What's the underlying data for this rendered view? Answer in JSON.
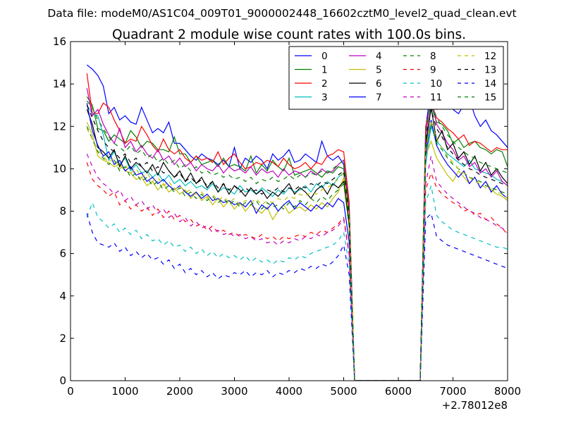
{
  "chart_data": {
    "type": "line",
    "suptitle": "Data file: modeM0/AS1C04_009T01_9000002448_16602cztM0_level2_quad_clean.evt",
    "title": "Quadrant 2 module wise count rates with 100.0s bins.",
    "xlabel": "",
    "ylabel": "",
    "x_offset_label": "+2.78012e8",
    "xlim": [
      0,
      8000
    ],
    "ylim": [
      0,
      16
    ],
    "xticks": [
      0,
      1000,
      2000,
      3000,
      4000,
      5000,
      6000,
      7000,
      8000
    ],
    "yticks": [
      0,
      2,
      4,
      6,
      8,
      10,
      12,
      14,
      16
    ],
    "x_start": 300,
    "x_step": 100,
    "gap": {
      "drop_from": 5100,
      "zero_from": 5200,
      "zero_to": 6400,
      "rise_to": 6500
    },
    "legend_position": "top-right",
    "series": [
      {
        "name": "0",
        "color": "#0000ff",
        "dash": "solid",
        "seg1": [
          14.9,
          14.7,
          14.4,
          13.9,
          12.6,
          12.9,
          12.3,
          12.5,
          12.2,
          12.1,
          12.9,
          12.3,
          11.7,
          11.9,
          11.7,
          12.2,
          11.2,
          11.2,
          10.9,
          10.6,
          10.4,
          10.7,
          10.5,
          10.4,
          10.2,
          10.4,
          10.1,
          11.0,
          10.0,
          10.5,
          10.3,
          10.6,
          10.4,
          10.0,
          10.7,
          10.4,
          10.6,
          10.9,
          10.3,
          10.4,
          10.7,
          10.5,
          10.3,
          11.3,
          10.6,
          10.4,
          10.6,
          10.2
        ],
        "seg2": [
          11.9,
          13.9,
          12.8,
          12.9,
          13.1,
          12.8,
          12.6,
          13.0,
          13.3,
          12.5,
          12.0,
          12.3,
          11.8,
          11.6,
          11.3,
          11.0
        ]
      },
      {
        "name": "1",
        "color": "#008000",
        "dash": "solid",
        "seg1": [
          13.4,
          13.0,
          11.9,
          11.8,
          11.3,
          11.6,
          11.4,
          11.2,
          11.8,
          11.5,
          11.0,
          11.3,
          11.2,
          10.9,
          10.9,
          10.8,
          11.5,
          10.7,
          10.7,
          10.3,
          10.6,
          10.2,
          10.3,
          10.4,
          10.1,
          10.5,
          10.1,
          10.2,
          10.1,
          9.9,
          10.6,
          9.8,
          10.2,
          9.9,
          10.4,
          10.1,
          9.9,
          10.5,
          9.7,
          9.8,
          9.9,
          10.0,
          9.8,
          9.6,
          9.9,
          9.8,
          10.1,
          10.0
        ],
        "seg2": [
          11.1,
          13.0,
          12.2,
          12.1,
          11.8,
          11.2,
          11.4,
          11.0,
          11.2,
          11.3,
          11.0,
          10.9,
          10.7,
          10.9,
          10.8,
          10.1
        ]
      },
      {
        "name": "2",
        "color": "#ff0000",
        "dash": "solid",
        "seg1": [
          14.5,
          12.6,
          12.6,
          13.1,
          12.9,
          12.3,
          11.8,
          11.2,
          11.4,
          11.3,
          12.0,
          11.6,
          11.1,
          10.8,
          11.4,
          10.9,
          10.7,
          10.9,
          10.5,
          10.3,
          10.6,
          10.4,
          10.5,
          10.3,
          10.8,
          10.2,
          10.5,
          10.7,
          10.3,
          10.0,
          10.1,
          10.3,
          10.2,
          10.4,
          10.3,
          10.1,
          10.5,
          10.2,
          10.0,
          10.1,
          10.3,
          10.0,
          10.3,
          10.2,
          10.6,
          10.7,
          10.9,
          10.8
        ],
        "seg2": [
          12.0,
          13.1,
          12.4,
          12.2,
          11.9,
          11.7,
          11.4,
          11.6,
          11.1,
          11.3,
          11.2,
          11.0,
          10.8,
          11.0,
          10.9,
          10.9
        ]
      },
      {
        "name": "3",
        "color": "#00bfbf",
        "dash": "solid",
        "seg1": [
          13.0,
          12.6,
          12.5,
          11.6,
          10.4,
          10.8,
          10.2,
          10.5,
          9.9,
          10.2,
          9.8,
          9.9,
          9.6,
          9.8,
          9.4,
          9.7,
          9.3,
          9.5,
          9.2,
          9.4,
          9.1,
          9.2,
          9.0,
          9.3,
          8.9,
          9.1,
          9.0,
          8.8,
          9.2,
          8.9,
          9.0,
          8.8,
          9.1,
          8.9,
          8.7,
          9.0,
          8.8,
          9.1,
          8.9,
          9.0,
          9.2,
          8.9,
          9.3,
          9.1,
          9.4,
          9.2,
          9.6,
          9.8
        ],
        "seg2": [
          10.2,
          12.0,
          11.3,
          11.0,
          10.7,
          10.5,
          10.3,
          10.1,
          10.4,
          10.0,
          9.9,
          9.8,
          9.7,
          9.5,
          9.4,
          9.2
        ]
      },
      {
        "name": "4",
        "color": "#bf00bf",
        "dash": "solid",
        "seg1": [
          13.8,
          12.5,
          12.8,
          12.1,
          11.6,
          11.2,
          11.9,
          11.0,
          11.3,
          10.8,
          11.1,
          10.7,
          10.5,
          10.9,
          10.4,
          10.6,
          10.2,
          10.5,
          10.1,
          10.3,
          9.9,
          10.2,
          10.0,
          9.9,
          10.2,
          9.8,
          10.1,
          9.9,
          10.0,
          9.8,
          10.1,
          9.7,
          10.0,
          9.8,
          9.9,
          9.6,
          10.0,
          9.7,
          9.9,
          9.8,
          9.6,
          9.9,
          9.7,
          10.0,
          9.8,
          9.9,
          10.2,
          10.4
        ],
        "seg2": [
          11.5,
          13.5,
          12.1,
          11.7,
          11.2,
          10.9,
          10.4,
          10.6,
          10.1,
          10.3,
          9.8,
          10.0,
          9.6,
          9.9,
          9.4,
          9.2
        ]
      },
      {
        "name": "5",
        "color": "#bfbf00",
        "dash": "solid",
        "seg1": [
          12.2,
          11.6,
          10.6,
          10.4,
          10.3,
          10.1,
          10.2,
          9.9,
          9.8,
          9.5,
          9.6,
          9.2,
          9.4,
          9.0,
          9.3,
          8.9,
          9.1,
          8.8,
          9.0,
          8.6,
          8.9,
          8.5,
          8.7,
          8.3,
          8.6,
          8.2,
          8.5,
          8.1,
          8.4,
          8.0,
          8.3,
          8.1,
          7.9,
          8.2,
          7.6,
          8.0,
          8.3,
          7.9,
          8.1,
          8.2,
          8.0,
          8.3,
          8.1,
          8.4,
          8.2,
          8.6,
          8.9,
          9.6
        ],
        "seg2": [
          10.6,
          11.3,
          10.5,
          10.1,
          9.7,
          9.4,
          9.9,
          9.6,
          9.3,
          9.6,
          9.1,
          9.4,
          9.0,
          8.8,
          8.7,
          8.5
        ]
      },
      {
        "name": "6",
        "color": "#000000",
        "dash": "solid",
        "seg1": [
          12.8,
          12.1,
          11.0,
          10.8,
          10.5,
          10.9,
          10.1,
          10.6,
          10.0,
          10.3,
          10.1,
          9.8,
          10.2,
          9.7,
          10.3,
          9.9,
          9.6,
          9.9,
          9.4,
          9.8,
          9.3,
          9.6,
          9.1,
          9.4,
          8.9,
          9.3,
          8.8,
          9.2,
          9.0,
          8.7,
          9.1,
          8.8,
          9.0,
          8.6,
          8.9,
          8.7,
          9.0,
          9.3,
          8.8,
          9.1,
          8.9,
          8.6,
          9.0,
          9.2,
          8.8,
          9.3,
          9.1,
          9.4
        ],
        "seg2": [
          11.0,
          12.9,
          11.3,
          11.8,
          10.9,
          11.2,
          10.5,
          10.8,
          10.2,
          10.6,
          9.9,
          10.3,
          9.7,
          10.0,
          9.6,
          9.3
        ]
      },
      {
        "name": "7",
        "color": "#0000ff",
        "dash": "solid",
        "seg1": [
          13.1,
          11.8,
          11.1,
          10.6,
          10.8,
          10.2,
          10.4,
          9.9,
          10.1,
          9.7,
          9.8,
          9.4,
          9.6,
          9.3,
          9.5,
          9.2,
          9.0,
          9.2,
          8.9,
          8.7,
          8.9,
          8.6,
          8.8,
          8.5,
          8.6,
          8.4,
          8.5,
          8.3,
          8.4,
          8.2,
          8.5,
          7.9,
          8.3,
          8.1,
          8.4,
          8.0,
          8.3,
          8.5,
          8.1,
          8.4,
          8.2,
          8.0,
          8.3,
          8.1,
          8.4,
          8.2,
          8.6,
          8.4
        ],
        "seg2": [
          10.6,
          12.3,
          11.1,
          10.6,
          10.2,
          9.9,
          9.6,
          9.9,
          9.3,
          9.6,
          9.1,
          9.4,
          8.9,
          9.2,
          8.8,
          8.6
        ]
      },
      {
        "name": "8",
        "color": "#008000",
        "dash": "dashed",
        "seg1": [
          12.0,
          11.4,
          10.8,
          10.5,
          10.2,
          10.4,
          9.9,
          10.1,
          9.6,
          9.8,
          9.4,
          9.6,
          9.2,
          9.4,
          9.0,
          9.2,
          8.9,
          9.1,
          8.7,
          8.9,
          8.6,
          8.8,
          8.5,
          8.7,
          8.4,
          8.6,
          8.3,
          8.5,
          8.2,
          8.4,
          8.3,
          8.5,
          8.1,
          8.4,
          8.2,
          8.3,
          8.1,
          8.4,
          8.2,
          8.5,
          8.3,
          8.6,
          8.4,
          8.7,
          8.5,
          8.8,
          9.0,
          9.3
        ],
        "seg2": [
          10.8,
          12.1,
          11.2,
          10.9,
          10.5,
          10.2,
          10.0,
          9.8,
          9.6,
          9.5,
          9.4,
          9.2,
          9.1,
          9.0,
          8.9,
          8.8
        ]
      },
      {
        "name": "9",
        "color": "#ff0000",
        "dash": "dashed",
        "seg1": [
          10.3,
          9.5,
          9.2,
          9.0,
          8.7,
          8.9,
          8.3,
          8.5,
          8.1,
          8.3,
          8.0,
          8.2,
          7.8,
          8.1,
          7.7,
          8.0,
          7.6,
          7.8,
          7.5,
          7.6,
          7.3,
          7.4,
          7.1,
          7.3,
          7.0,
          7.1,
          6.9,
          7.0,
          6.8,
          6.9,
          6.8,
          6.7,
          6.9,
          6.7,
          6.8,
          6.6,
          6.8,
          6.7,
          6.8,
          6.9,
          6.8,
          7.0,
          6.9,
          7.1,
          7.0,
          7.2,
          7.4,
          7.7
        ],
        "seg2": [
          9.0,
          9.8,
          9.1,
          8.8,
          8.6,
          8.4,
          8.3,
          8.0,
          8.1,
          7.8,
          7.9,
          7.6,
          7.7,
          7.4,
          7.2,
          6.9
        ]
      },
      {
        "name": "10",
        "color": "#00bfbf",
        "dash": "dashed",
        "seg1": [
          7.7,
          8.4,
          7.7,
          7.5,
          7.2,
          7.4,
          7.0,
          7.2,
          6.9,
          7.1,
          6.7,
          6.9,
          6.6,
          6.7,
          6.4,
          6.6,
          6.3,
          6.4,
          6.1,
          6.3,
          6.0,
          6.2,
          5.9,
          6.1,
          5.8,
          6.0,
          5.8,
          5.9,
          5.7,
          5.9,
          5.6,
          5.8,
          5.6,
          5.7,
          5.5,
          5.7,
          5.6,
          5.8,
          5.7,
          5.9,
          5.8,
          6.0,
          6.1,
          6.2,
          6.3,
          6.4,
          6.6,
          7.0
        ],
        "seg2": [
          8.4,
          9.2,
          7.8,
          7.5,
          7.3,
          7.1,
          7.0,
          6.9,
          6.8,
          6.7,
          6.6,
          6.5,
          6.4,
          6.3,
          6.3,
          6.2
        ]
      },
      {
        "name": "11",
        "color": "#bf00bf",
        "dash": "dashed",
        "seg1": [
          10.7,
          10.1,
          9.6,
          9.3,
          9.1,
          8.8,
          9.0,
          8.5,
          8.7,
          8.3,
          8.5,
          8.1,
          8.3,
          7.9,
          8.1,
          7.7,
          7.9,
          7.5,
          7.7,
          7.3,
          7.5,
          7.2,
          7.3,
          7.0,
          7.1,
          6.9,
          7.0,
          6.8,
          6.9,
          6.7,
          6.8,
          6.6,
          6.7,
          6.5,
          6.6,
          6.4,
          6.6,
          6.5,
          6.7,
          6.6,
          6.8,
          6.7,
          6.9,
          6.8,
          7.0,
          7.1,
          7.3,
          7.6
        ],
        "seg2": [
          9.3,
          10.6,
          9.4,
          9.1,
          8.8,
          8.6,
          8.4,
          8.2,
          8.0,
          7.9,
          7.7,
          7.6,
          7.5,
          7.3,
          7.2,
          7.0
        ]
      },
      {
        "name": "12",
        "color": "#bfbf00",
        "dash": "dashed",
        "seg1": [
          11.9,
          11.4,
          10.9,
          10.6,
          10.3,
          10.5,
          10.0,
          10.2,
          9.8,
          10.0,
          9.6,
          9.8,
          9.4,
          9.6,
          9.2,
          9.4,
          9.0,
          9.2,
          8.9,
          9.0,
          8.8,
          8.9,
          8.6,
          8.8,
          8.5,
          8.7,
          8.4,
          8.6,
          8.3,
          8.5,
          8.4,
          8.6,
          8.3,
          8.5,
          8.4,
          8.6,
          8.5,
          8.7,
          8.6,
          8.8,
          8.7,
          8.9,
          8.8,
          9.0,
          9.1,
          9.3,
          9.5,
          9.8
        ],
        "seg2": [
          10.9,
          12.3,
          11.4,
          11.0,
          10.6,
          10.3,
          10.0,
          9.8,
          9.6,
          9.4,
          9.3,
          9.1,
          9.0,
          8.9,
          8.8,
          8.6
        ]
      },
      {
        "name": "13",
        "color": "#000000",
        "dash": "dashed",
        "seg1": [
          13.0,
          12.4,
          11.8,
          11.3,
          11.0,
          10.8,
          10.5,
          10.7,
          10.3,
          10.5,
          10.1,
          10.3,
          9.9,
          10.1,
          9.8,
          9.9,
          9.6,
          9.8,
          9.4,
          9.6,
          9.3,
          9.5,
          9.2,
          9.4,
          9.1,
          9.3,
          9.0,
          9.2,
          8.9,
          9.1,
          8.9,
          9.0,
          8.8,
          9.0,
          8.9,
          9.1,
          8.9,
          9.1,
          9.0,
          9.2,
          9.1,
          9.3,
          9.2,
          9.4,
          9.3,
          9.5,
          9.7,
          9.9
        ],
        "seg2": [
          11.4,
          12.8,
          11.9,
          11.5,
          11.0,
          10.7,
          10.4,
          10.2,
          10.0,
          9.9,
          9.7,
          9.6,
          9.5,
          9.4,
          9.3,
          9.2
        ]
      },
      {
        "name": "14",
        "color": "#0000ff",
        "dash": "dashed",
        "seg1": [
          7.9,
          7.0,
          6.5,
          6.4,
          6.3,
          6.5,
          6.1,
          6.3,
          5.9,
          6.1,
          5.8,
          6.0,
          5.7,
          5.8,
          5.5,
          5.7,
          5.3,
          5.5,
          5.1,
          5.3,
          5.0,
          5.2,
          4.9,
          5.1,
          4.8,
          5.0,
          4.9,
          5.1,
          5.0,
          5.2,
          4.9,
          5.1,
          5.0,
          5.2,
          4.9,
          5.1,
          5.0,
          5.2,
          5.1,
          5.3,
          5.2,
          5.4,
          5.3,
          5.5,
          5.4,
          5.6,
          5.9,
          6.4
        ],
        "seg2": [
          7.6,
          7.9,
          6.8,
          6.6,
          6.4,
          6.3,
          6.2,
          6.1,
          6.0,
          5.9,
          5.8,
          5.7,
          5.6,
          5.5,
          5.4,
          5.3
        ]
      },
      {
        "name": "15",
        "color": "#008000",
        "dash": "dashed",
        "seg1": [
          13.2,
          12.9,
          12.3,
          11.9,
          11.5,
          11.2,
          11.0,
          10.8,
          11.1,
          10.7,
          10.9,
          10.5,
          10.7,
          10.3,
          10.5,
          10.2,
          10.4,
          10.0,
          10.2,
          9.9,
          10.1,
          9.8,
          9.9,
          9.7,
          9.8,
          9.6,
          9.7,
          9.5,
          9.6,
          9.4,
          9.6,
          9.3,
          9.5,
          9.4,
          9.6,
          9.4,
          9.5,
          9.7,
          9.5,
          9.7,
          9.6,
          9.8,
          9.7,
          9.9,
          9.8,
          10.0,
          10.2,
          10.4
        ],
        "seg2": [
          11.8,
          13.2,
          12.4,
          12.0,
          11.6,
          11.3,
          11.0,
          10.8,
          10.6,
          10.5,
          10.3,
          10.2,
          10.1,
          10.0,
          9.9,
          9.8
        ]
      }
    ]
  }
}
